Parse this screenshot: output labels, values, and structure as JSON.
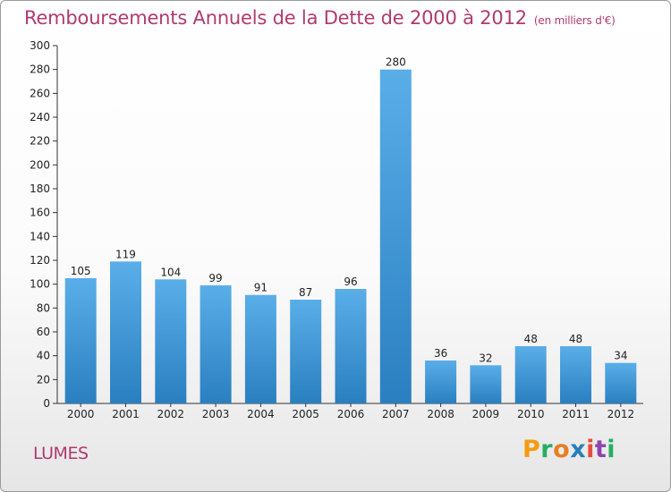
{
  "header": {
    "title": "Remboursements Annuels de la Dette de 2000 à 2012",
    "unit": "(en milliers d'€)"
  },
  "footer": {
    "commune": "LUMES",
    "logo_letters": [
      "P",
      "r",
      "o",
      "x",
      "i",
      "t",
      "i"
    ],
    "logo_colors": [
      "#f39c12",
      "#27ae60",
      "#e67e22",
      "#2980b9",
      "#e74c3c",
      "#8e44ad",
      "#27ae60"
    ]
  },
  "chart_data": {
    "type": "bar",
    "title": "Remboursements Annuels de la Dette de 2000 à 2012",
    "xlabel": "",
    "ylabel": "",
    "categories": [
      "2000",
      "2001",
      "2002",
      "2003",
      "2004",
      "2005",
      "2006",
      "2007",
      "2008",
      "2009",
      "2010",
      "2011",
      "2012"
    ],
    "values": [
      105,
      119,
      104,
      99,
      91,
      87,
      96,
      280,
      36,
      32,
      48,
      48,
      34
    ],
    "ylim": [
      0,
      300
    ],
    "ytick_step": 20,
    "grid": false,
    "bar_color_top": "#5aaee8",
    "bar_color_bottom": "#2a7fc0"
  }
}
